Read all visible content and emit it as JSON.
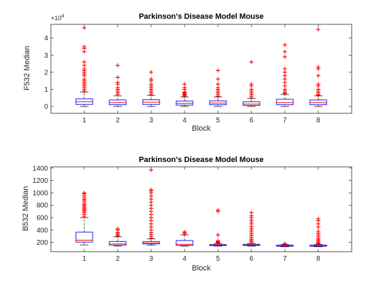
{
  "chart_data": [
    {
      "type": "box",
      "title": "Parkinson's Disease Model Mouse",
      "xlabel": "Block",
      "ylabel": "F532 Median",
      "y_multiplier_label": "×10",
      "y_multiplier_exponent": "4",
      "categories": [
        "1",
        "2",
        "3",
        "4",
        "5",
        "6",
        "7",
        "8"
      ],
      "yticks": [
        "0",
        "1",
        "2",
        "3",
        "4"
      ],
      "ylim": [
        -0.4,
        4.8
      ],
      "ytick_values": [
        0,
        1,
        2,
        3,
        4
      ],
      "box_color": "#0000ff",
      "median_color": "#ff0000",
      "outlier_color": "#ff0000",
      "boxes": [
        {
          "category": "1",
          "whisker_low": 0.0,
          "q1": 0.12,
          "median": 0.28,
          "q3": 0.45,
          "whisker_high": 0.85,
          "outliers": [
            0.9,
            1.0,
            1.1,
            1.2,
            1.3,
            1.4,
            1.5,
            1.6,
            1.8,
            1.9,
            2.0,
            2.1,
            2.2,
            2.4,
            2.6,
            3.2,
            3.4,
            3.5,
            4.6
          ]
        },
        {
          "category": "2",
          "whisker_low": 0.0,
          "q1": 0.1,
          "median": 0.22,
          "q3": 0.38,
          "whisker_high": 0.62,
          "outliers": [
            0.7,
            0.8,
            0.9,
            1.0,
            1.1,
            1.3,
            1.4,
            1.7,
            2.4
          ]
        },
        {
          "category": "3",
          "whisker_low": 0.0,
          "q1": 0.12,
          "median": 0.25,
          "q3": 0.4,
          "whisker_high": 0.65,
          "outliers": [
            0.7,
            0.8,
            0.9,
            1.0,
            1.1,
            1.2,
            1.3,
            1.5,
            1.6,
            2.0
          ]
        },
        {
          "category": "4",
          "whisker_low": 0.0,
          "q1": 0.08,
          "median": 0.18,
          "q3": 0.32,
          "whisker_high": 0.55,
          "outliers": [
            0.6,
            0.65,
            0.7,
            0.75,
            0.8,
            0.85,
            1.0,
            1.1,
            1.3
          ]
        },
        {
          "category": "5",
          "whisker_low": 0.0,
          "q1": 0.1,
          "median": 0.2,
          "q3": 0.33,
          "whisker_high": 0.55,
          "outliers": [
            0.6,
            0.7,
            0.8,
            0.9,
            1.0,
            1.1,
            1.3,
            1.6,
            2.1
          ]
        },
        {
          "category": "6",
          "whisker_low": 0.0,
          "q1": 0.06,
          "median": 0.14,
          "q3": 0.28,
          "whisker_high": 0.48,
          "outliers": [
            0.5,
            0.6,
            0.7,
            0.8,
            0.9,
            1.0,
            1.2,
            1.3,
            2.6
          ]
        },
        {
          "category": "7",
          "whisker_low": 0.0,
          "q1": 0.1,
          "median": 0.22,
          "q3": 0.42,
          "whisker_high": 0.7,
          "outliers": [
            0.75,
            0.8,
            0.9,
            1.0,
            1.2,
            1.4,
            1.6,
            1.8,
            2.0,
            2.2,
            2.9,
            3.2,
            3.6
          ]
        },
        {
          "category": "8",
          "whisker_low": 0.0,
          "q1": 0.1,
          "median": 0.22,
          "q3": 0.38,
          "whisker_high": 0.62,
          "outliers": [
            0.65,
            0.7,
            0.8,
            0.9,
            1.0,
            1.2,
            1.3,
            1.8,
            2.2,
            2.3,
            4.5
          ]
        }
      ]
    },
    {
      "type": "box",
      "title": "Parkinson's Disease Model Mouse",
      "xlabel": "Block",
      "ylabel": "B532 Median",
      "categories": [
        "1",
        "2",
        "3",
        "4",
        "5",
        "6",
        "7",
        "8"
      ],
      "yticks": [
        "200",
        "400",
        "600",
        "800",
        "1000",
        "1200",
        "1400"
      ],
      "ytick_values": [
        200,
        400,
        600,
        800,
        1000,
        1200,
        1400
      ],
      "ylim": [
        50,
        1420
      ],
      "box_color": "#0000ff",
      "median_color": "#ff0000",
      "outlier_color": "#ff0000",
      "boxes": [
        {
          "category": "1",
          "whisker_low": 160,
          "q1": 205,
          "median": 235,
          "q3": 365,
          "whisker_high": 600,
          "outliers": [
            620,
            650,
            680,
            700,
            720,
            740,
            760,
            780,
            800,
            820,
            850,
            880,
            900,
            930,
            960,
            990,
            1000
          ]
        },
        {
          "category": "2",
          "whisker_low": 140,
          "q1": 155,
          "median": 175,
          "q3": 215,
          "whisker_high": 290,
          "outliers": [
            300,
            320,
            340,
            360,
            400,
            420
          ]
        },
        {
          "category": "3",
          "whisker_low": 155,
          "q1": 175,
          "median": 190,
          "q3": 215,
          "whisker_high": 255,
          "outliers": [
            270,
            300,
            330,
            360,
            400,
            450,
            500,
            550,
            600,
            650,
            700,
            750,
            800,
            850,
            900,
            950,
            1000,
            1030,
            1050,
            1370
          ]
        },
        {
          "category": "4",
          "whisker_low": 140,
          "q1": 150,
          "median": 170,
          "q3": 230,
          "whisker_high": 320,
          "outliers": [
            335,
            355,
            370
          ]
        },
        {
          "category": "5",
          "whisker_low": 140,
          "q1": 148,
          "median": 155,
          "q3": 165,
          "whisker_high": 180,
          "outliers": [
            185,
            195,
            205,
            215,
            225,
            320,
            700,
            720
          ]
        },
        {
          "category": "6",
          "whisker_low": 140,
          "q1": 150,
          "median": 160,
          "q3": 170,
          "whisker_high": 185,
          "outliers": [
            190,
            210,
            230,
            250,
            280,
            310,
            340,
            370,
            400,
            430,
            460,
            500,
            530,
            560,
            600,
            630,
            680
          ]
        },
        {
          "category": "7",
          "whisker_low": 130,
          "q1": 138,
          "median": 145,
          "q3": 155,
          "whisker_high": 165,
          "outliers": [
            170,
            175,
            180
          ]
        },
        {
          "category": "8",
          "whisker_low": 130,
          "q1": 138,
          "median": 145,
          "q3": 155,
          "whisker_high": 168,
          "outliers": [
            175,
            185,
            200,
            220,
            240,
            260,
            290,
            320,
            350,
            380,
            450,
            500,
            550,
            580
          ]
        }
      ]
    }
  ]
}
